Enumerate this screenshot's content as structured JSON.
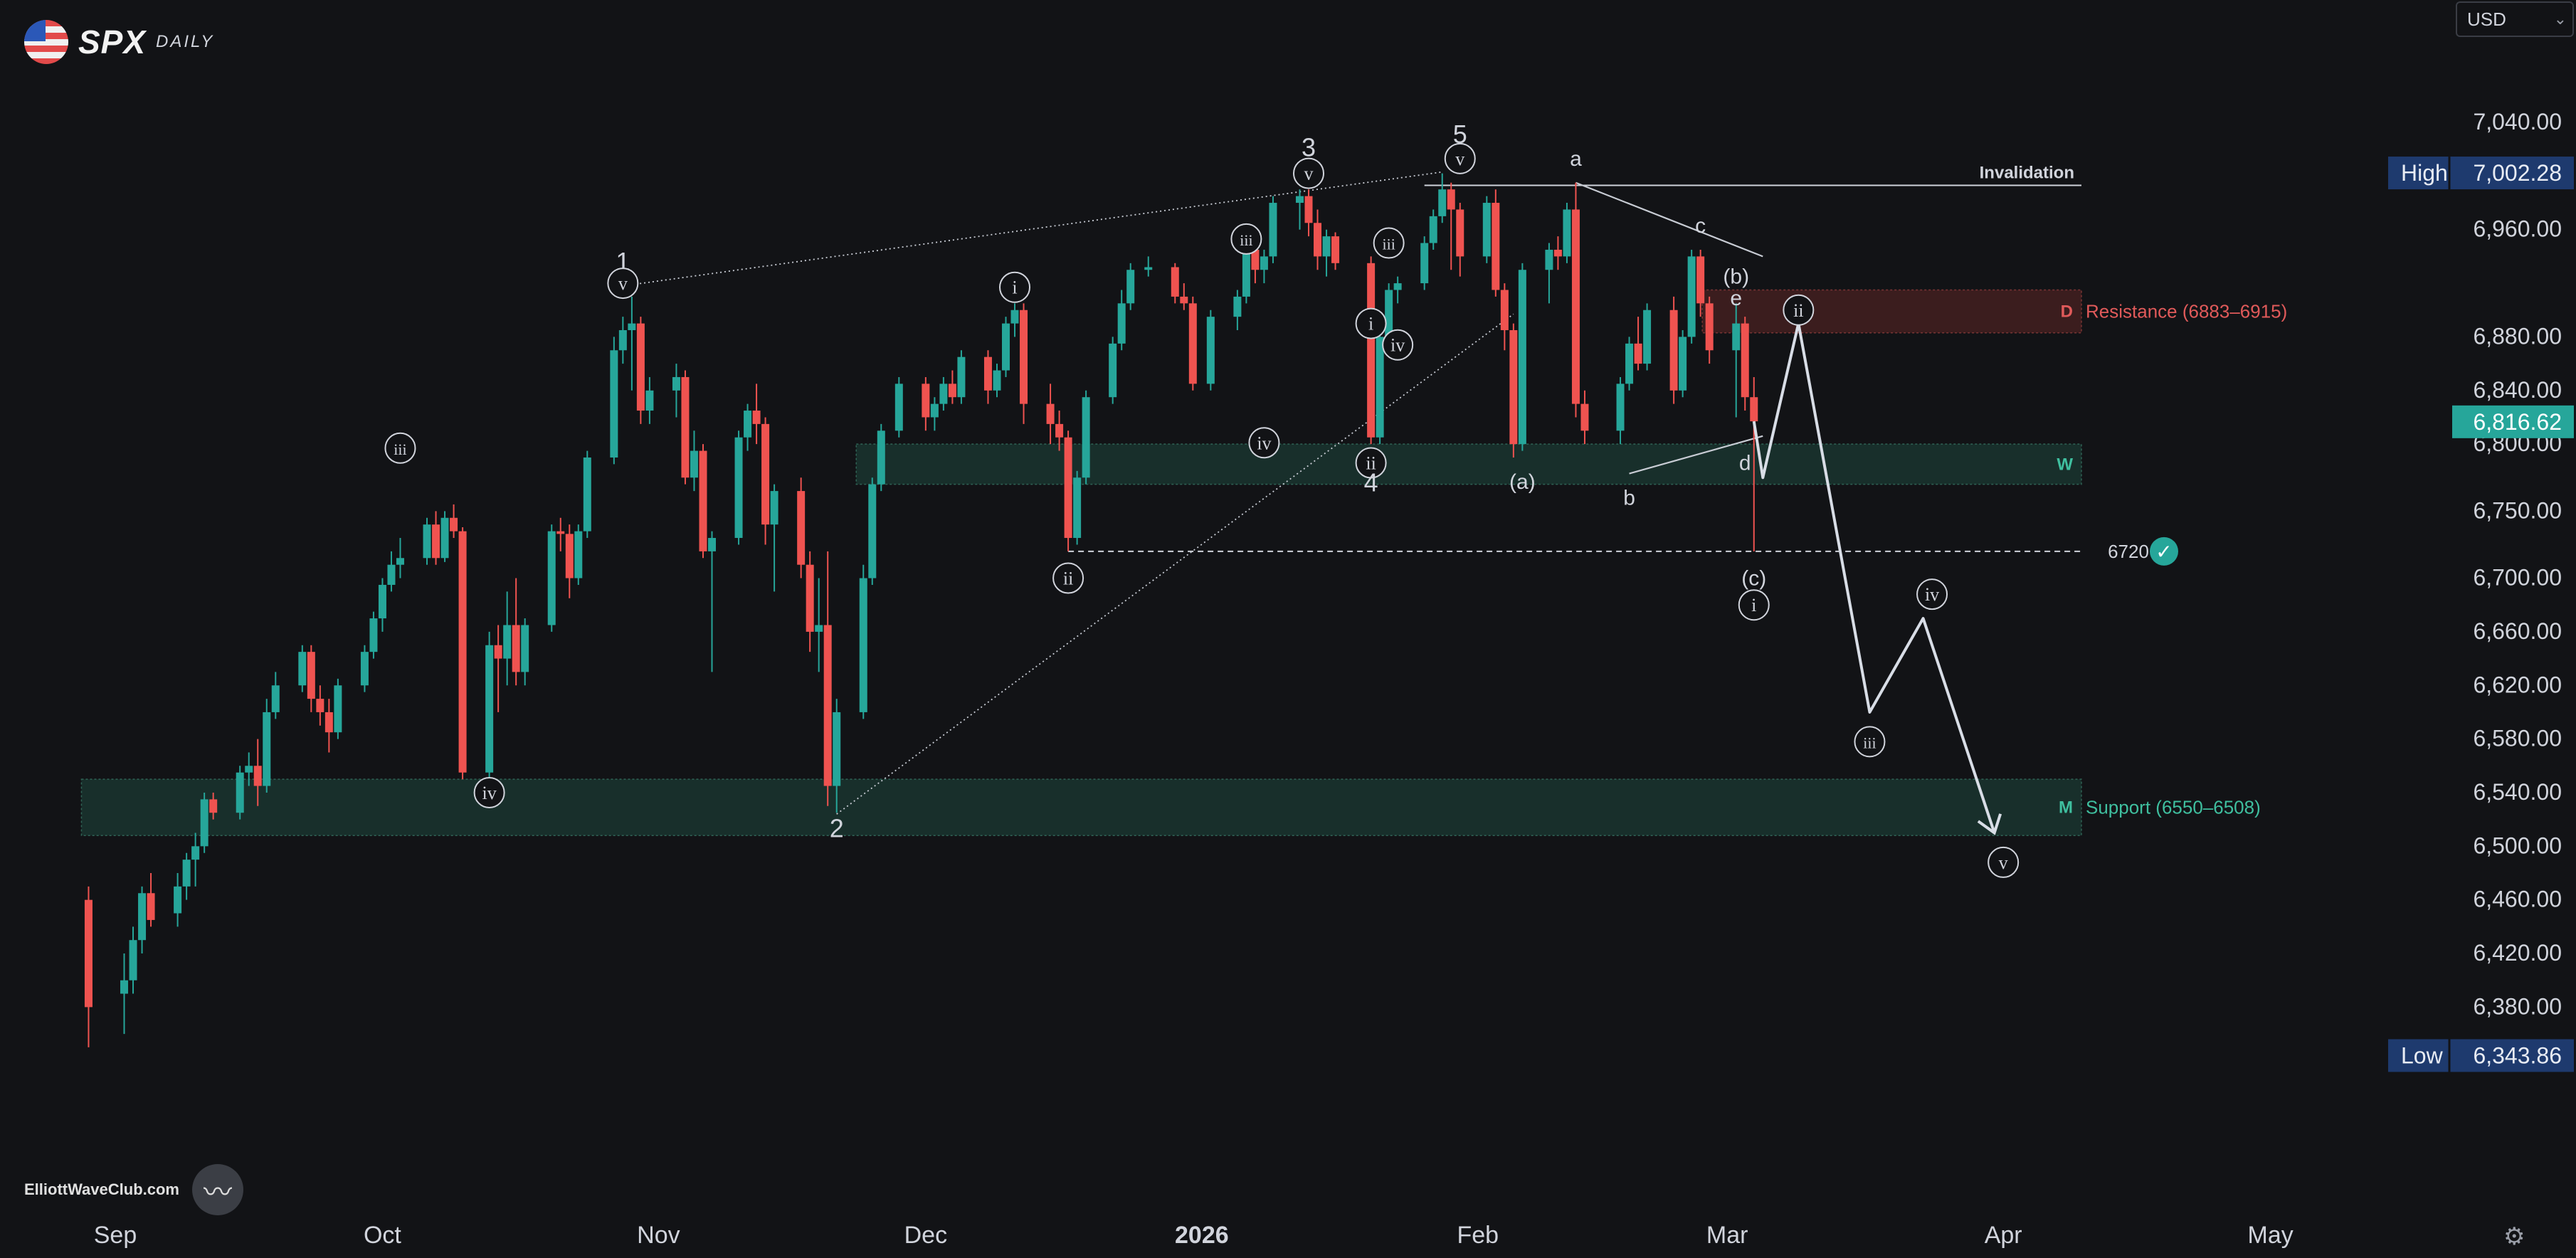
{
  "header": {
    "ticker": "SPX",
    "timeframe": "DAILY",
    "currency": "USD"
  },
  "footer": {
    "watermark": "ElliottWaveClub.com"
  },
  "colors": {
    "background": "#121316",
    "up": "#26a69a",
    "down": "#ef5350",
    "support_zone": "#1b3a33",
    "resistance_zone": "#4a2222",
    "projection": "#d8dde6",
    "label_box": "#1e3a6e",
    "last_price_box": "#26a69a"
  },
  "chart_data": {
    "type": "candlestick",
    "yaxis": {
      "ticks": [
        "7,040.00",
        "6,960.00",
        "6,880.00",
        "6,840.00",
        "6,800.00",
        "6,750.00",
        "6,700.00",
        "6,660.00",
        "6,620.00",
        "6,580.00",
        "6,540.00",
        "6,500.00",
        "6,460.00",
        "6,420.00",
        "6,380.00"
      ],
      "tick_values": [
        7040,
        6960,
        6880,
        6840,
        6800,
        6750,
        6700,
        6660,
        6620,
        6580,
        6540,
        6500,
        6460,
        6420,
        6380
      ],
      "high_label": "High",
      "high_value": "7,002.28",
      "low_label": "Low",
      "low_value": "6,343.86",
      "last_price": "6,816.62"
    },
    "xaxis": {
      "ticks": [
        "Sep",
        "Oct",
        "Nov",
        "Dec",
        "2026",
        "Feb",
        "Mar",
        "Apr",
        "May"
      ],
      "tick_dates": [
        "2025-09-01",
        "2025-10-01",
        "2025-11-01",
        "2025-12-01",
        "2026-01-01",
        "2026-02-01",
        "2026-03-01",
        "2026-04-01",
        "2026-05-01"
      ]
    },
    "ohlc": [
      [
        "2025-08-29",
        6460,
        6470,
        6350,
        6380
      ],
      [
        "2025-09-02",
        6390,
        6420,
        6360,
        6400
      ],
      [
        "2025-09-03",
        6400,
        6440,
        6390,
        6430
      ],
      [
        "2025-09-04",
        6430,
        6470,
        6420,
        6465
      ],
      [
        "2025-09-05",
        6465,
        6480,
        6440,
        6445
      ],
      [
        "2025-09-08",
        6450,
        6480,
        6440,
        6470
      ],
      [
        "2025-09-09",
        6470,
        6495,
        6460,
        6490
      ],
      [
        "2025-09-10",
        6490,
        6510,
        6470,
        6500
      ],
      [
        "2025-09-11",
        6500,
        6540,
        6495,
        6535
      ],
      [
        "2025-09-12",
        6535,
        6540,
        6520,
        6525
      ],
      [
        "2025-09-15",
        6525,
        6560,
        6520,
        6555
      ],
      [
        "2025-09-16",
        6555,
        6570,
        6545,
        6560
      ],
      [
        "2025-09-17",
        6560,
        6580,
        6530,
        6545
      ],
      [
        "2025-09-18",
        6545,
        6610,
        6540,
        6600
      ],
      [
        "2025-09-19",
        6600,
        6630,
        6595,
        6620
      ],
      [
        "2025-09-22",
        6620,
        6650,
        6615,
        6645
      ],
      [
        "2025-09-23",
        6645,
        6650,
        6600,
        6610
      ],
      [
        "2025-09-24",
        6610,
        6620,
        6590,
        6600
      ],
      [
        "2025-09-25",
        6600,
        6610,
        6570,
        6585
      ],
      [
        "2025-09-26",
        6585,
        6625,
        6580,
        6620
      ],
      [
        "2025-09-29",
        6620,
        6650,
        6615,
        6645
      ],
      [
        "2025-09-30",
        6645,
        6675,
        6640,
        6670
      ],
      [
        "2025-10-01",
        6670,
        6700,
        6660,
        6695
      ],
      [
        "2025-10-02",
        6695,
        6720,
        6690,
        6710
      ],
      [
        "2025-10-03",
        6710,
        6730,
        6700,
        6715
      ],
      [
        "2025-10-06",
        6715,
        6745,
        6710,
        6740
      ],
      [
        "2025-10-07",
        6740,
        6750,
        6710,
        6715
      ],
      [
        "2025-10-08",
        6715,
        6750,
        6712,
        6745
      ],
      [
        "2025-10-09",
        6745,
        6755,
        6730,
        6735
      ],
      [
        "2025-10-10",
        6735,
        6738,
        6550,
        6555
      ],
      [
        "2025-10-13",
        6555,
        6660,
        6550,
        6650
      ],
      [
        "2025-10-14",
        6650,
        6665,
        6600,
        6640
      ],
      [
        "2025-10-15",
        6640,
        6690,
        6620,
        6665
      ],
      [
        "2025-10-16",
        6665,
        6700,
        6620,
        6630
      ],
      [
        "2025-10-17",
        6630,
        6670,
        6620,
        6665
      ],
      [
        "2025-10-20",
        6665,
        6740,
        6660,
        6735
      ],
      [
        "2025-10-21",
        6735,
        6745,
        6720,
        6733
      ],
      [
        "2025-10-22",
        6733,
        6740,
        6685,
        6700
      ],
      [
        "2025-10-23",
        6700,
        6740,
        6695,
        6735
      ],
      [
        "2025-10-24",
        6735,
        6795,
        6730,
        6790
      ],
      [
        "2025-10-27",
        6790,
        6880,
        6785,
        6870
      ],
      [
        "2025-10-28",
        6870,
        6895,
        6860,
        6885
      ],
      [
        "2025-10-29",
        6885,
        6910,
        6840,
        6890
      ],
      [
        "2025-10-30",
        6890,
        6895,
        6815,
        6825
      ],
      [
        "2025-10-31",
        6825,
        6850,
        6815,
        6840
      ],
      [
        "2025-11-03",
        6840,
        6860,
        6820,
        6850
      ],
      [
        "2025-11-04",
        6850,
        6855,
        6770,
        6775
      ],
      [
        "2025-11-05",
        6775,
        6810,
        6765,
        6795
      ],
      [
        "2025-11-06",
        6795,
        6800,
        6715,
        6720
      ],
      [
        "2025-11-07",
        6720,
        6735,
        6630,
        6730
      ],
      [
        "2025-11-10",
        6730,
        6810,
        6725,
        6805
      ],
      [
        "2025-11-11",
        6805,
        6830,
        6795,
        6825
      ],
      [
        "2025-11-12",
        6825,
        6845,
        6800,
        6815
      ],
      [
        "2025-11-13",
        6815,
        6820,
        6725,
        6740
      ],
      [
        "2025-11-14",
        6740,
        6770,
        6690,
        6765
      ],
      [
        "2025-11-17",
        6765,
        6775,
        6700,
        6710
      ],
      [
        "2025-11-18",
        6710,
        6720,
        6645,
        6660
      ],
      [
        "2025-11-19",
        6660,
        6700,
        6630,
        6665
      ],
      [
        "2025-11-20",
        6665,
        6720,
        6530,
        6545
      ],
      [
        "2025-11-21",
        6545,
        6610,
        6525,
        6600
      ],
      [
        "2025-11-24",
        6600,
        6710,
        6595,
        6700
      ],
      [
        "2025-11-25",
        6700,
        6775,
        6695,
        6770
      ],
      [
        "2025-11-26",
        6770,
        6815,
        6765,
        6810
      ],
      [
        "2025-11-28",
        6810,
        6850,
        6805,
        6845
      ],
      [
        "2025-12-01",
        6845,
        6850,
        6810,
        6820
      ],
      [
        "2025-12-02",
        6820,
        6835,
        6810,
        6830
      ],
      [
        "2025-12-03",
        6830,
        6850,
        6825,
        6845
      ],
      [
        "2025-12-04",
        6845,
        6855,
        6830,
        6835
      ],
      [
        "2025-12-05",
        6835,
        6870,
        6830,
        6865
      ],
      [
        "2025-12-08",
        6865,
        6870,
        6830,
        6840
      ],
      [
        "2025-12-09",
        6840,
        6860,
        6835,
        6855
      ],
      [
        "2025-12-10",
        6855,
        6895,
        6850,
        6890
      ],
      [
        "2025-12-11",
        6890,
        6905,
        6880,
        6900
      ],
      [
        "2025-12-12",
        6900,
        6905,
        6815,
        6830
      ],
      [
        "2025-12-15",
        6830,
        6845,
        6800,
        6815
      ],
      [
        "2025-12-16",
        6815,
        6825,
        6795,
        6805
      ],
      [
        "2025-12-17",
        6805,
        6810,
        6720,
        6730
      ],
      [
        "2025-12-18",
        6730,
        6780,
        6725,
        6775
      ],
      [
        "2025-12-19",
        6775,
        6840,
        6770,
        6835
      ],
      [
        "2025-12-22",
        6835,
        6880,
        6830,
        6875
      ],
      [
        "2025-12-23",
        6875,
        6915,
        6870,
        6905
      ],
      [
        "2025-12-24",
        6905,
        6935,
        6900,
        6930
      ],
      [
        "2025-12-26",
        6930,
        6940,
        6925,
        6932
      ],
      [
        "2025-12-29",
        6932,
        6935,
        6905,
        6910
      ],
      [
        "2025-12-30",
        6910,
        6920,
        6900,
        6905
      ],
      [
        "2025-12-31",
        6905,
        6910,
        6840,
        6845
      ],
      [
        "2026-01-02",
        6845,
        6900,
        6840,
        6895
      ],
      [
        "2026-01-05",
        6895,
        6915,
        6885,
        6910
      ],
      [
        "2026-01-06",
        6910,
        6950,
        6905,
        6945
      ],
      [
        "2026-01-07",
        6945,
        6960,
        6920,
        6930
      ],
      [
        "2026-01-08",
        6930,
        6945,
        6920,
        6940
      ],
      [
        "2026-01-09",
        6940,
        6985,
        6935,
        6980
      ],
      [
        "2026-01-12",
        6980,
        6990,
        6960,
        6985
      ],
      [
        "2026-01-13",
        6985,
        6990,
        6955,
        6965
      ],
      [
        "2026-01-14",
        6965,
        6975,
        6930,
        6940
      ],
      [
        "2026-01-15",
        6940,
        6960,
        6925,
        6955
      ],
      [
        "2026-01-16",
        6955,
        6958,
        6930,
        6935
      ],
      [
        "2026-01-20",
        6935,
        6940,
        6800,
        6805
      ],
      [
        "2026-01-21",
        6805,
        6885,
        6800,
        6880
      ],
      [
        "2026-01-22",
        6880,
        6920,
        6875,
        6915
      ],
      [
        "2026-01-23",
        6915,
        6925,
        6905,
        6920
      ],
      [
        "2026-01-26",
        6920,
        6955,
        6915,
        6950
      ],
      [
        "2026-01-27",
        6950,
        6975,
        6945,
        6970
      ],
      [
        "2026-01-28",
        6970,
        7002,
        6965,
        6990
      ],
      [
        "2026-01-29",
        6990,
        6995,
        6930,
        6975
      ],
      [
        "2026-01-30",
        6975,
        6980,
        6925,
        6940
      ],
      [
        "2026-02-02",
        6940,
        6985,
        6935,
        6980
      ],
      [
        "2026-02-03",
        6980,
        6990,
        6910,
        6915
      ],
      [
        "2026-02-04",
        6915,
        6920,
        6870,
        6885
      ],
      [
        "2026-02-05",
        6885,
        6890,
        6790,
        6800
      ],
      [
        "2026-02-06",
        6800,
        6935,
        6795,
        6930
      ],
      [
        "2026-02-09",
        6930,
        6950,
        6905,
        6945
      ],
      [
        "2026-02-10",
        6945,
        6955,
        6930,
        6940
      ],
      [
        "2026-02-11",
        6940,
        6980,
        6935,
        6975
      ],
      [
        "2026-02-12",
        6975,
        6995,
        6820,
        6830
      ],
      [
        "2026-02-13",
        6830,
        6840,
        6800,
        6810
      ],
      [
        "2026-02-17",
        6810,
        6850,
        6800,
        6845
      ],
      [
        "2026-02-18",
        6845,
        6880,
        6840,
        6875
      ],
      [
        "2026-02-19",
        6875,
        6895,
        6855,
        6860
      ],
      [
        "2026-02-20",
        6860,
        6905,
        6855,
        6900
      ],
      [
        "2026-02-23",
        6900,
        6910,
        6830,
        6840
      ],
      [
        "2026-02-24",
        6840,
        6885,
        6835,
        6880
      ],
      [
        "2026-02-25",
        6880,
        6945,
        6875,
        6940
      ],
      [
        "2026-02-26",
        6940,
        6945,
        6895,
        6905
      ],
      [
        "2026-02-27",
        6905,
        6910,
        6860,
        6870
      ],
      [
        "2026-03-02",
        6870,
        6905,
        6820,
        6890
      ],
      [
        "2026-03-03",
        6890,
        6895,
        6825,
        6835
      ],
      [
        "2026-03-04",
        6835,
        6850,
        6720,
        6817
      ]
    ],
    "zones": [
      {
        "name": "Resistance (6883–6915)",
        "marker": "D",
        "low": 6883,
        "high": 6915,
        "from": "2026-02-27",
        "kind": "resistance"
      },
      {
        "name": "",
        "marker": "W",
        "low": 6770,
        "high": 6800,
        "from": "2025-11-24",
        "kind": "support"
      },
      {
        "name": "Support (6550–6508)",
        "marker": "M",
        "low": 6508,
        "high": 6550,
        "from": "2025-08-29",
        "kind": "support"
      }
    ],
    "lines": [
      {
        "name": "Invalidation",
        "price": 6993,
        "from": "2026-01-26",
        "dash": "solid"
      },
      {
        "name": "6720",
        "price": 6720,
        "from": "2025-12-17",
        "dash": "dashed",
        "marker": "✓"
      }
    ],
    "projection": [
      [
        "2026-03-04",
        6817
      ],
      [
        "2026-03-05",
        6775
      ],
      [
        "2026-03-09",
        6890
      ],
      [
        "2026-03-17",
        6600
      ],
      [
        "2026-03-23",
        6670
      ],
      [
        "2026-03-31",
        6510
      ]
    ],
    "wave_labels": [
      {
        "text": "1",
        "date": "2025-10-28",
        "price": 6935,
        "style": "plain"
      },
      {
        "text": "v",
        "date": "2025-10-28",
        "price": 6920,
        "style": "circle"
      },
      {
        "text": "iii",
        "date": "2025-10-03",
        "price": 6797,
        "style": "circle"
      },
      {
        "text": "iv",
        "date": "2025-10-13",
        "price": 6540,
        "style": "circle"
      },
      {
        "text": "2",
        "date": "2025-11-21",
        "price": 6512,
        "style": "plain"
      },
      {
        "text": "i",
        "date": "2025-12-11",
        "price": 6917,
        "style": "circle"
      },
      {
        "text": "ii",
        "date": "2025-12-17",
        "price": 6700,
        "style": "circle"
      },
      {
        "text": "iii",
        "date": "2026-01-06",
        "price": 6953,
        "style": "circle"
      },
      {
        "text": "iv",
        "date": "2026-01-08",
        "price": 6801,
        "style": "circle"
      },
      {
        "text": "3",
        "date": "2026-01-13",
        "price": 7020,
        "style": "plain"
      },
      {
        "text": "v",
        "date": "2026-01-13",
        "price": 7002,
        "style": "circle"
      },
      {
        "text": "i",
        "date": "2026-01-20",
        "price": 6890,
        "style": "circle"
      },
      {
        "text": "ii",
        "date": "2026-01-20",
        "price": 6786,
        "style": "circle"
      },
      {
        "text": "4",
        "date": "2026-01-20",
        "price": 6770,
        "style": "plain"
      },
      {
        "text": "iii",
        "date": "2026-01-22",
        "price": 6950,
        "style": "circle"
      },
      {
        "text": "iv",
        "date": "2026-01-23",
        "price": 6874,
        "style": "circle"
      },
      {
        "text": "5",
        "date": "2026-01-30",
        "price": 7030,
        "style": "plain"
      },
      {
        "text": "v",
        "date": "2026-01-30",
        "price": 7013,
        "style": "circle"
      },
      {
        "text": "a",
        "date": "2026-02-12",
        "price": 7013,
        "style": "plain"
      },
      {
        "text": "(a)",
        "date": "2026-02-06",
        "price": 6772,
        "style": "plain"
      },
      {
        "text": "b",
        "date": "2026-02-18",
        "price": 6760,
        "style": "plain"
      },
      {
        "text": "c",
        "date": "2026-02-26",
        "price": 6963,
        "style": "plain"
      },
      {
        "text": "(b)",
        "date": "2026-03-02",
        "price": 6925,
        "style": "plain"
      },
      {
        "text": "e",
        "date": "2026-03-02",
        "price": 6909,
        "style": "plain"
      },
      {
        "text": "d",
        "date": "2026-03-03",
        "price": 6786,
        "style": "plain"
      },
      {
        "text": "(c)",
        "date": "2026-03-04",
        "price": 6700,
        "style": "plain"
      },
      {
        "text": "i",
        "date": "2026-03-04",
        "price": 6680,
        "style": "circle"
      },
      {
        "text": "ii",
        "date": "2026-03-09",
        "price": 6900,
        "style": "circle"
      },
      {
        "text": "iii",
        "date": "2026-03-17",
        "price": 6578,
        "style": "circle"
      },
      {
        "text": "iv",
        "date": "2026-03-24",
        "price": 6688,
        "style": "circle"
      },
      {
        "text": "v",
        "date": "2026-04-01",
        "price": 6488,
        "style": "circle"
      }
    ],
    "trendlines": [
      {
        "from": [
          "2025-10-28",
          6918
        ],
        "to": [
          "2026-01-28",
          7003
        ],
        "style": "dotted"
      },
      {
        "from": [
          "2025-11-21",
          6524
        ],
        "to": [
          "2026-02-05",
          6897
        ],
        "style": "dotted"
      },
      {
        "from": [
          "2026-02-12",
          6995
        ],
        "to": [
          "2026-03-05",
          6940
        ],
        "style": "solid"
      },
      {
        "from": [
          "2026-02-18",
          6778
        ],
        "to": [
          "2026-03-05",
          6806
        ],
        "style": "solid"
      }
    ]
  }
}
